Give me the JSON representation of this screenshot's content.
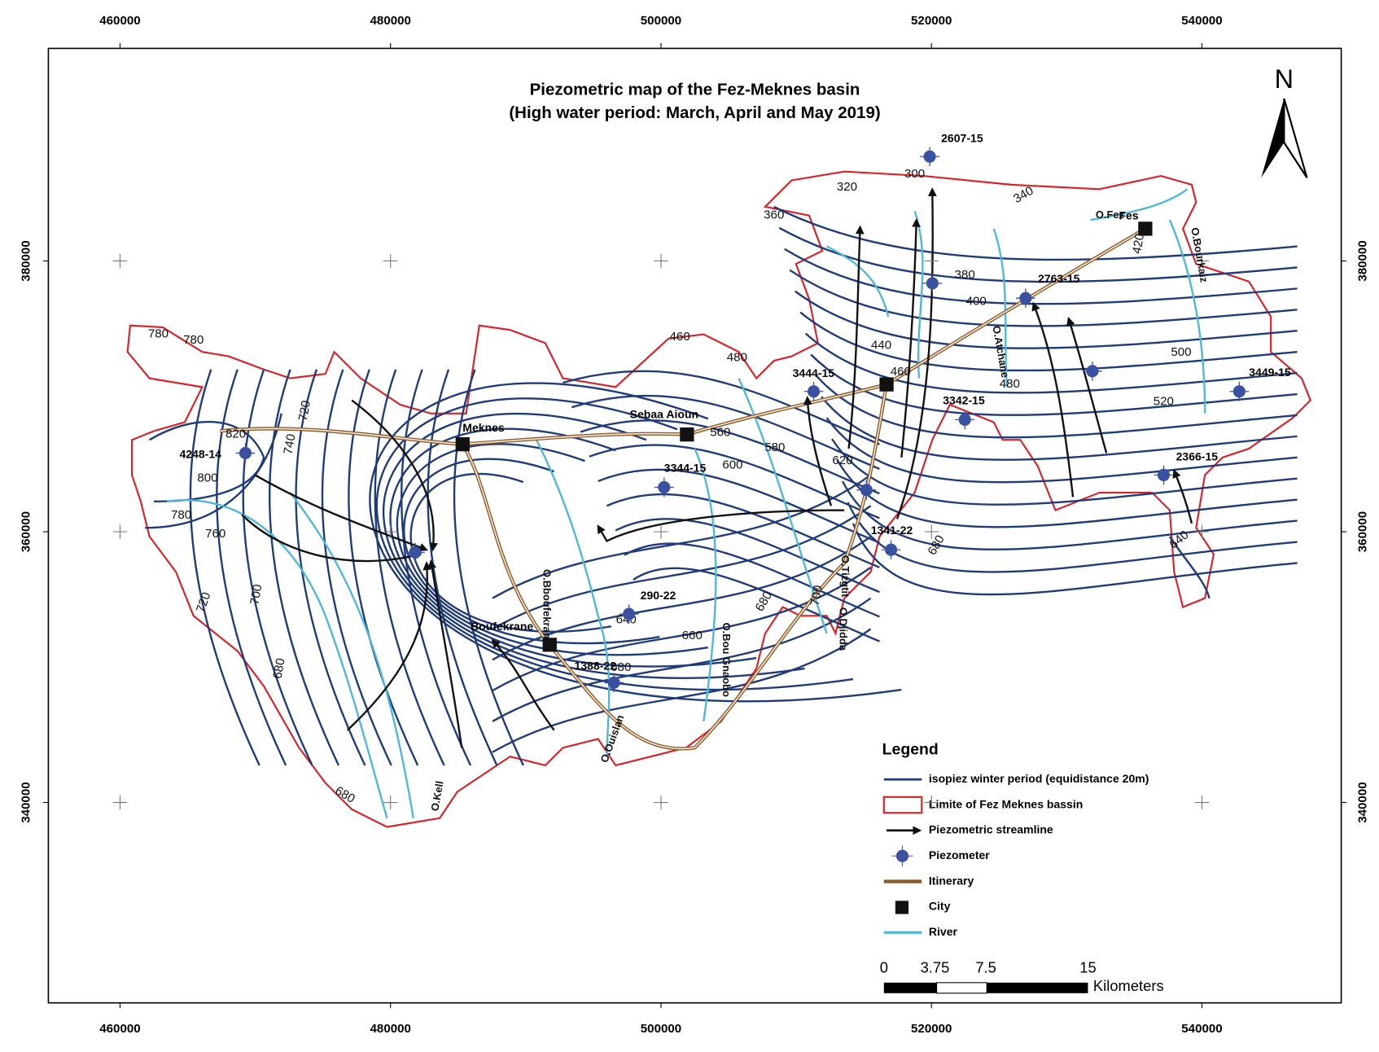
{
  "title": [
    "Piezometric map of the Fez-Meknes basin",
    "(High water period: March, April and May 2019)"
  ],
  "north": "N",
  "xlim": [
    454700,
    550300
  ],
  "ylim": [
    325200,
    395700
  ],
  "xticks": [
    460000,
    480000,
    500000,
    520000,
    540000
  ],
  "yticks": [
    340000,
    360000,
    380000
  ],
  "piezometers": [
    {
      "label": "4248-14",
      "x": 469270,
      "y": 365810
    },
    {
      "label": null,
      "x": 481820,
      "y": 358470
    },
    {
      "label": "3344-15",
      "x": 500230,
      "y": 363280
    },
    {
      "label": "290-22",
      "x": 497630,
      "y": 353920
    },
    {
      "label": "1388-22",
      "x": 496520,
      "y": 348850
    },
    {
      "label": "3444-15",
      "x": 511290,
      "y": 370360
    },
    {
      "label": null,
      "x": 515190,
      "y": 363080
    },
    {
      "label": "1341-22",
      "x": 517010,
      "y": 358670
    },
    {
      "label": null,
      "x": 520070,
      "y": 378350
    },
    {
      "label": "2607-15",
      "x": 519870,
      "y": 387710
    },
    {
      "label": "3342-15",
      "x": 522470,
      "y": 368280
    },
    {
      "label": "2763-15",
      "x": 526960,
      "y": 377250
    },
    {
      "label": null,
      "x": 531900,
      "y": 371860
    },
    {
      "label": "3449-15",
      "x": 542760,
      "y": 370360
    },
    {
      "label": "2366-15",
      "x": 537170,
      "y": 364190
    }
  ],
  "cities": [
    {
      "label": "Meknes",
      "x": 485330,
      "y": 366460
    },
    {
      "label": "Sebaa Aioun",
      "x": 501920,
      "y": 367180
    },
    {
      "label": "Fes",
      "x": 535810,
      "y": 382380
    },
    {
      "label": "Boufekrane",
      "x": 491770,
      "y": 351650
    },
    {
      "label": null,
      "x": 516680,
      "y": 370880
    }
  ],
  "rivers": [
    "O.Kell",
    "O.Bboufekrane",
    "O.Ouislan",
    "O.Bou Gnaobo",
    "O.Tizgtit",
    "O.Djidda",
    "O.Atchane",
    "O.Fez",
    "O.Bourkaiz"
  ],
  "contour_labels": [
    780,
    780,
    820,
    800,
    780,
    760,
    720,
    740,
    720,
    700,
    680,
    680,
    460,
    480,
    560,
    580,
    600,
    620,
    640,
    660,
    680,
    680,
    700,
    680,
    360,
    320,
    300,
    340,
    380,
    400,
    440,
    460,
    480,
    420,
    500,
    520,
    640
  ],
  "legend": {
    "title": "Legend",
    "items": [
      "isopiez winter period (equidistance 20m)",
      "Limite of Fez Meknes bassin",
      "Piezometric streamline",
      "Piezometer",
      "Itinerary",
      "City",
      "River"
    ]
  },
  "scale_bar": {
    "labels": [
      0,
      3.75,
      7.5,
      15
    ],
    "unit": "Kilometers"
  }
}
